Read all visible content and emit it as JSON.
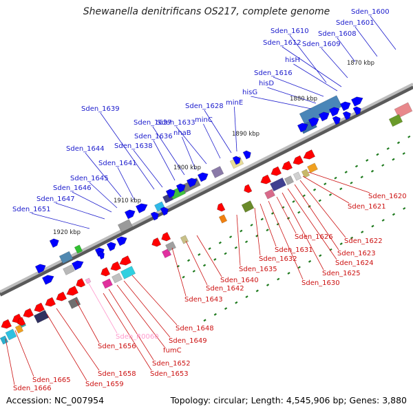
{
  "title": "Shewanella denitrificans OS217, complete genome",
  "footer": {
    "accession": "Accession: NC_007954",
    "topology": "Topology: circular; Length: 4,545,906 bp; Genes: 3,880"
  },
  "colors": {
    "forward_gene": "#0000ff",
    "reverse_gene": "#ff0000",
    "forward_label": "#1a1acc",
    "reverse_label": "#cc1111",
    "rna_label": "#ff9acd",
    "backbone": "#808080",
    "tick": "#1e7a1e"
  },
  "scale_labels": [
    "1870 kbp",
    "1880 kbp",
    "1890 kbp",
    "1900 kbp",
    "1910 kbp",
    "1920 kbp"
  ],
  "forward_labels": [
    "Sden_1600",
    "Sden_1601",
    "Sden_1608",
    "Sden_1609",
    "Sden_1610",
    "Sden_1612",
    "hisH",
    "Sden_1616",
    "hisD",
    "hisG",
    "minE",
    "Sden_1628",
    "minC",
    "Sden_1633",
    "nhaB",
    "Sden_1637",
    "Sden_1636",
    "Sden_1639",
    "Sden_1638",
    "Sden_1641",
    "Sden_1644",
    "Sden_1645",
    "Sden_1646",
    "Sden_1647",
    "Sden_1651"
  ],
  "reverse_labels": [
    "Sden_1620",
    "Sden_1621",
    "Sden_1622",
    "Sden_1623",
    "Sden_1624",
    "Sden_1625",
    "Sden_1626",
    "Sden_1630",
    "Sden_1631",
    "Sden_1632",
    "Sden_1635",
    "Sden_1640",
    "Sden_1642",
    "Sden_1643",
    "Sden_1648",
    "Sden_1649",
    "fumC",
    "Sden_1652",
    "Sden_1653",
    "Sden_1656",
    "Sden_1658",
    "Sden_1659",
    "Sden_1665",
    "Sden_1666"
  ],
  "rna_labels": [
    "Sden_R0060"
  ]
}
